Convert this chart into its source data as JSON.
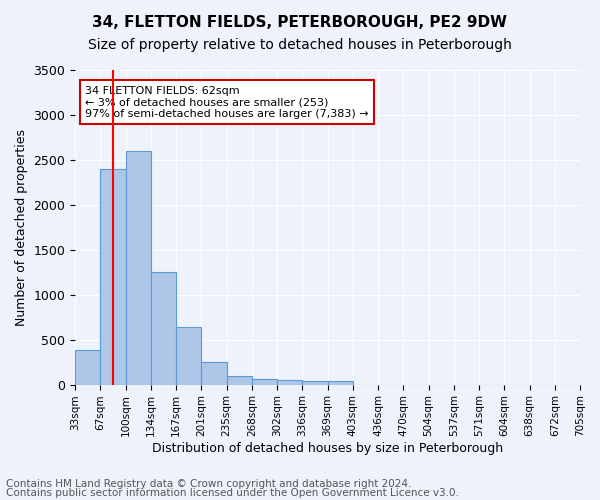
{
  "title1": "34, FLETTON FIELDS, PETERBOROUGH, PE2 9DW",
  "title2": "Size of property relative to detached houses in Peterborough",
  "xlabel": "Distribution of detached houses by size in Peterborough",
  "ylabel": "Number of detached properties",
  "footnote1": "Contains HM Land Registry data © Crown copyright and database right 2024.",
  "footnote2": "Contains public sector information licensed under the Open Government Licence v3.0.",
  "annotation_line1": "34 FLETTON FIELDS: 62sqm",
  "annotation_line2": "← 3% of detached houses are smaller (253)",
  "annotation_line3": "97% of semi-detached houses are larger (7,383) →",
  "bar_values": [
    390,
    2400,
    2600,
    1250,
    640,
    250,
    100,
    60,
    55,
    40,
    35,
    0,
    0,
    0,
    0,
    0,
    0,
    0,
    0,
    0
  ],
  "x_labels": [
    "33sqm",
    "67sqm",
    "100sqm",
    "134sqm",
    "167sqm",
    "201sqm",
    "235sqm",
    "268sqm",
    "302sqm",
    "336sqm",
    "369sqm",
    "403sqm",
    "436sqm",
    "470sqm",
    "504sqm",
    "537sqm",
    "571sqm",
    "604sqm",
    "638sqm",
    "672sqm",
    "705sqm"
  ],
  "bar_color": "#aec6e8",
  "bar_edge_color": "#5b9bd5",
  "red_line_x": 1.0,
  "ylim": [
    0,
    3500
  ],
  "yticks": [
    0,
    500,
    1000,
    1500,
    2000,
    2500,
    3000,
    3500
  ],
  "bg_color": "#eef2fb",
  "grid_color": "#ffffff",
  "annotation_box_color": "#ffffff",
  "annotation_box_edge": "#cc0000",
  "title1_fontsize": 11,
  "title2_fontsize": 10,
  "footnote_fontsize": 7.5,
  "tick_fontsize": 7.5,
  "ylabel_fontsize": 9,
  "xlabel_fontsize": 9
}
